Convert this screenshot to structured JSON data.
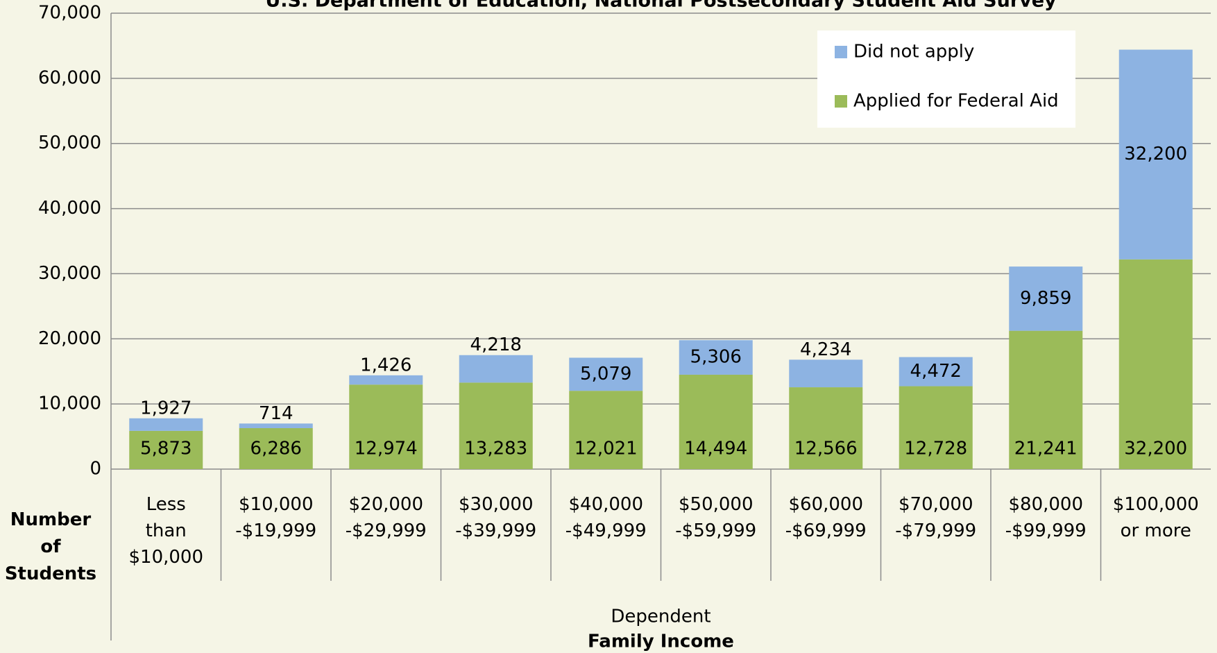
{
  "chart_data": {
    "type": "stacked_bar",
    "title": "U.S. Department of Education, National Postsecondary Student Aid Survey",
    "y_label": "Number\nof\nStudents",
    "x_group_label": "Dependent",
    "x_label": "Family Income",
    "categories": [
      "Less\nthan\n$10,000",
      "$10,000\n-$19,999",
      "$20,000\n-$29,999",
      "$30,000\n-$39,999",
      "$40,000\n-$49,999",
      "$50,000\n-$59,999",
      "$60,000\n-$69,999",
      "$70,000\n-$79,999",
      "$80,000\n-$99,999",
      "$100,000\nor more"
    ],
    "series": [
      {
        "name": "Applied for Federal Aid",
        "color": "#9bbb59",
        "values": [
          5873,
          6286,
          12974,
          13283,
          12021,
          14494,
          12566,
          12728,
          21241,
          32200
        ],
        "value_labels": [
          "5,873",
          "6,286",
          "12,974",
          "13,283",
          "12,021",
          "14,494",
          "12,566",
          "12,728",
          "21,241",
          "32,200"
        ]
      },
      {
        "name": "Did not apply",
        "color": "#8db3e2",
        "values": [
          1927,
          714,
          1426,
          4218,
          5079,
          5306,
          4234,
          4472,
          9859,
          32200
        ],
        "value_labels": [
          "1,927",
          "714",
          "1,426",
          "4,218",
          "5,079",
          "5,306",
          "4,234",
          "4,472",
          "9,859",
          "32,200"
        ]
      }
    ],
    "ylim": [
      0,
      70000
    ],
    "yticks": [
      0,
      {
        "value": 10000,
        "label": "10,000"
      },
      {
        "value": 20000,
        "label": "20,000"
      },
      {
        "value": 30000,
        "label": "30,000"
      },
      {
        "value": 40000,
        "label": "40,000"
      },
      {
        "value": 50000,
        "label": "50,000"
      },
      {
        "value": 60000,
        "label": "60,000"
      },
      {
        "value": 70000,
        "label": "70,000"
      }
    ],
    "grid": true,
    "legend": "top-right"
  }
}
